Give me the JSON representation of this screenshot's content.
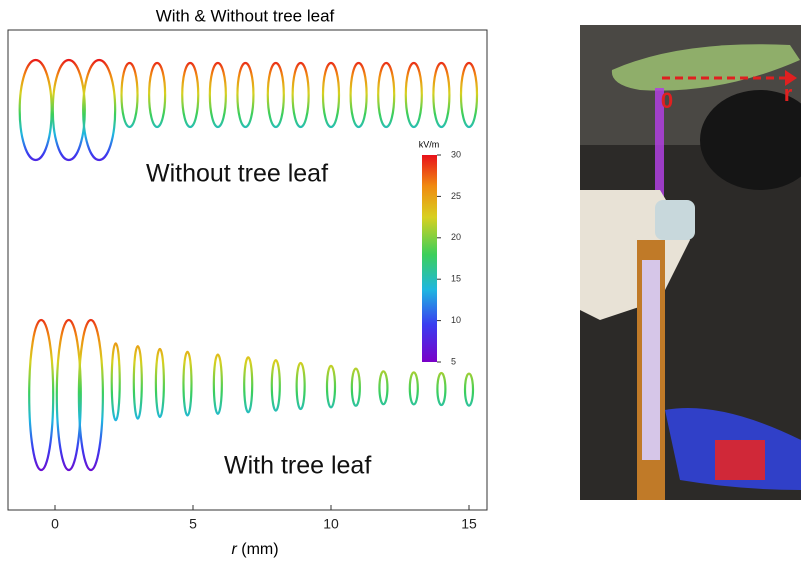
{
  "chart_data": {
    "type": "loops",
    "title": "With & Without tree leaf",
    "x_label_symbol": "r",
    "x_label_unit": "(mm)",
    "xlim": [
      -1.3,
      15.3
    ],
    "xticks": [
      0,
      5,
      10,
      15
    ],
    "groups": [
      {
        "name": "Without tree leaf",
        "x": [
          -0.7,
          0.5,
          1.6,
          2.7,
          3.7,
          4.9,
          5.9,
          6.9,
          8.0,
          8.9,
          10.0,
          11.0,
          12.0,
          13.0,
          14.0,
          15.0
        ]
      },
      {
        "name": "With tree leaf",
        "x": [
          -0.5,
          0.5,
          1.3,
          2.2,
          3.0,
          3.8,
          4.8,
          5.9,
          7.0,
          8.0,
          8.9,
          10.0,
          10.9,
          11.9,
          13.0,
          14.0,
          15.0
        ]
      }
    ],
    "colorbar": {
      "label": "kV/m",
      "lim": [
        5,
        30
      ],
      "ticks": [
        5,
        10,
        15,
        20,
        25,
        30
      ]
    }
  },
  "photo": {
    "label_origin": "0",
    "label_r": "r"
  }
}
